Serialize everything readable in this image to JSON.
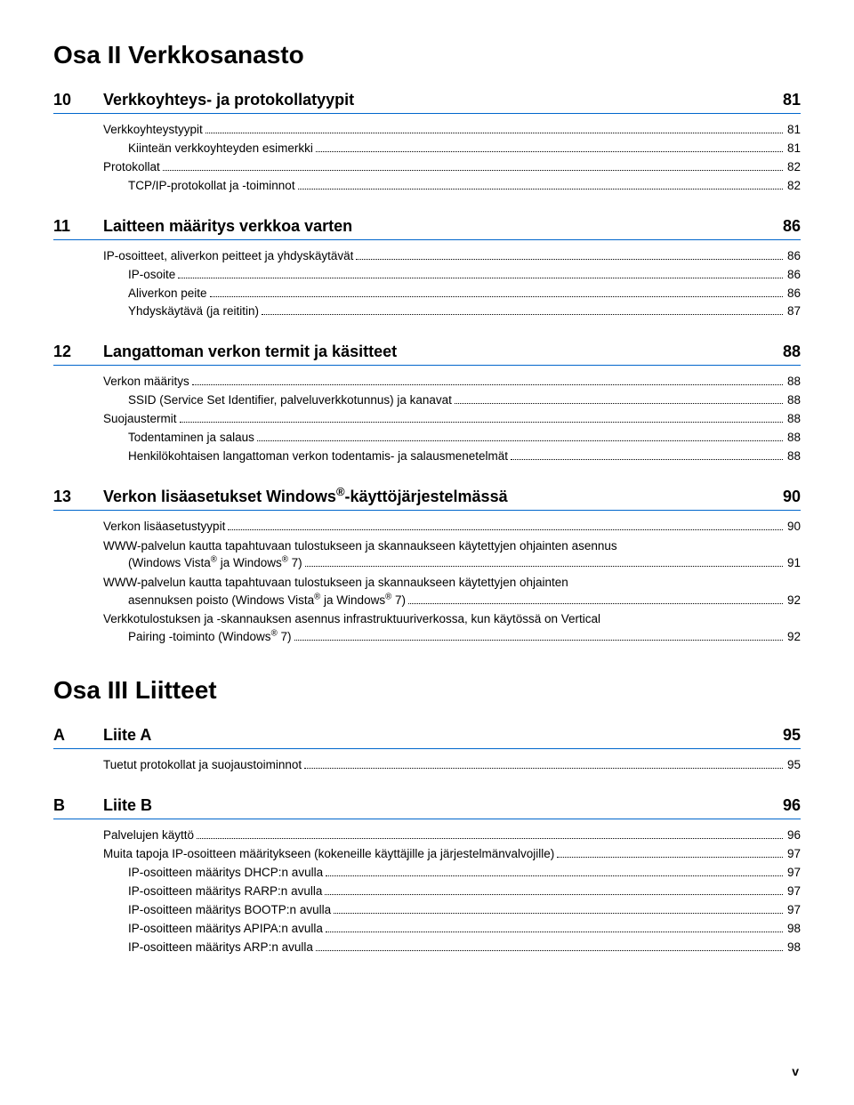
{
  "sections": [
    {
      "title": "Osa II  Verkkosanasto",
      "chapters": [
        {
          "num": "10",
          "title": "Verkkoyhteys- ja protokollatyypit",
          "page": "81",
          "entries": [
            {
              "label": "Verkkoyhteystyypit",
              "page": "81",
              "indent": 0
            },
            {
              "label": "Kiinteän verkkoyhteyden esimerkki",
              "page": "81",
              "indent": 1
            },
            {
              "label": "Protokollat",
              "page": "82",
              "indent": 0
            },
            {
              "label": "TCP/IP-protokollat ja -toiminnot",
              "page": "82",
              "indent": 1
            }
          ]
        },
        {
          "num": "11",
          "title": "Laitteen määritys verkkoa varten",
          "page": "86",
          "entries": [
            {
              "label": "IP-osoitteet, aliverkon peitteet ja yhdyskäytävät",
              "page": "86",
              "indent": 0
            },
            {
              "label": "IP-osoite",
              "page": "86",
              "indent": 1
            },
            {
              "label": "Aliverkon peite",
              "page": "86",
              "indent": 1
            },
            {
              "label": "Yhdyskäytävä (ja reititin)",
              "page": "87",
              "indent": 1
            }
          ]
        },
        {
          "num": "12",
          "title": "Langattoman verkon termit ja käsitteet",
          "page": "88",
          "entries": [
            {
              "label": "Verkon määritys",
              "page": "88",
              "indent": 0
            },
            {
              "label": "SSID (Service Set Identifier, palveluverkkotunnus) ja kanavat",
              "page": "88",
              "indent": 1
            },
            {
              "label": "Suojaustermit",
              "page": "88",
              "indent": 0
            },
            {
              "label": "Todentaminen ja salaus",
              "page": "88",
              "indent": 1
            },
            {
              "label": "Henkilökohtaisen langattoman verkon todentamis- ja salausmenetelmät",
              "page": "88",
              "indent": 1
            }
          ]
        },
        {
          "num": "13",
          "title_html": "Verkon lisäasetukset Windows<span class=\"sup\">®</span>-käyttöjärjestelmässä",
          "page": "90",
          "entries": [
            {
              "label": "Verkon lisäasetustyypit",
              "page": "90",
              "indent": 0
            },
            {
              "multi": true,
              "indent": 0,
              "page": "91",
              "lines": [
                "WWW-palvelun kautta tapahtuvaan tulostukseen ja skannaukseen käytettyjen ohjainten asennus"
              ],
              "last_html": "(Windows Vista<span class=\"sup\">®</span> ja Windows<span class=\"sup\">®</span> 7)",
              "last_indent": 1
            },
            {
              "multi": true,
              "indent": 0,
              "page": "92",
              "lines": [
                "WWW-palvelun kautta tapahtuvaan tulostukseen ja skannaukseen käytettyjen ohjainten"
              ],
              "last_html": "asennuksen poisto (Windows Vista<span class=\"sup\">®</span> ja Windows<span class=\"sup\">®</span> 7)",
              "last_indent": 1
            },
            {
              "multi": true,
              "indent": 0,
              "page": "92",
              "lines": [
                "Verkkotulostuksen ja -skannauksen asennus infrastruktuuriverkossa, kun käytössä on Vertical"
              ],
              "last_html": "Pairing -toiminto (Windows<span class=\"sup\">®</span> 7)",
              "last_indent": 1
            }
          ]
        }
      ]
    },
    {
      "title": "Osa III Liitteet",
      "chapters": [
        {
          "num": "A",
          "title": "Liite A",
          "page": "95",
          "entries": [
            {
              "label": "Tuetut protokollat ja suojaustoiminnot",
              "page": "95",
              "indent": 0
            }
          ]
        },
        {
          "num": "B",
          "title": "Liite B",
          "page": "96",
          "entries": [
            {
              "label": "Palvelujen käyttö",
              "page": "96",
              "indent": 0
            },
            {
              "label": "Muita tapoja IP-osoitteen määritykseen (kokeneille käyttäjille ja järjestelmänvalvojille)",
              "page": "97",
              "indent": 0
            },
            {
              "label": "IP-osoitteen määritys DHCP:n avulla",
              "page": "97",
              "indent": 1
            },
            {
              "label": "IP-osoitteen määritys RARP:n avulla",
              "page": "97",
              "indent": 1
            },
            {
              "label": "IP-osoitteen määritys BOOTP:n avulla",
              "page": "97",
              "indent": 1
            },
            {
              "label": "IP-osoitteen määritys APIPA:n avulla",
              "page": "98",
              "indent": 1
            },
            {
              "label": "IP-osoitteen määritys ARP:n avulla",
              "page": "98",
              "indent": 1
            }
          ]
        }
      ]
    }
  ],
  "footer": "v",
  "style": {
    "rule_color": "#0066cc",
    "text_color": "#000000",
    "background": "#ffffff",
    "section_title_fontsize": 28,
    "chapter_title_fontsize": 18,
    "body_fontsize": 13.5
  }
}
